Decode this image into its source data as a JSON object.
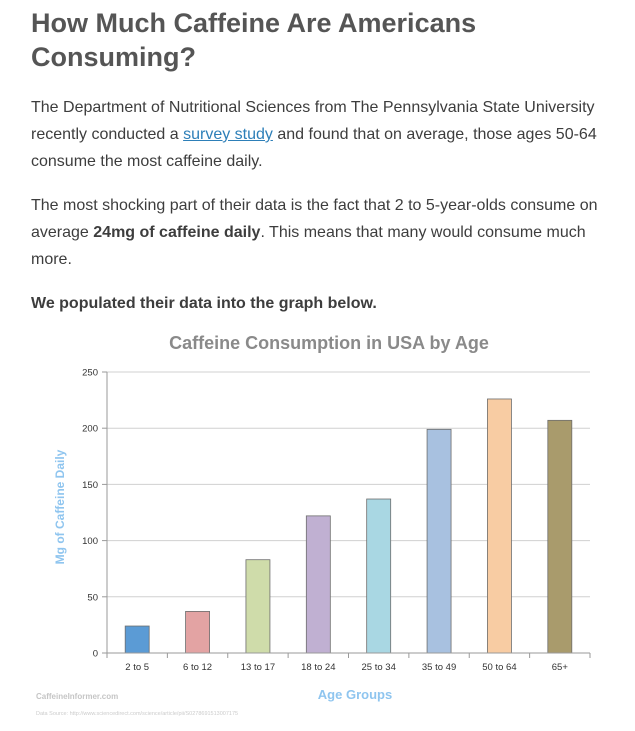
{
  "article": {
    "title": "How Much Caffeine Are Americans Consuming?",
    "paragraph1": {
      "before_link": "The Department of Nutritional Sciences from The Pennsylvania State University recently conducted a ",
      "link_text": "survey study",
      "after_link": " and found that on average, those ages 50-64 consume the most caffeine daily."
    },
    "paragraph2": {
      "before_bold": "The most shocking part of their data is the fact that 2 to 5-year-olds consume on average ",
      "bold_text": "24mg of caffeine daily",
      "after_bold": ". This means that many would consume much more."
    },
    "paragraph3": "We populated their data into the graph below.",
    "link_color": "#2d7fb8"
  },
  "chart_data": {
    "type": "bar",
    "title": "Caffeine Consumption in USA by Age",
    "xlabel": "Age Groups",
    "ylabel": "Mg of Caffeine Daily",
    "categories": [
      "2 to 5",
      "6 to 12",
      "13 to 17",
      "18 to 24",
      "25 to 34",
      "35 to 49",
      "50 to 64",
      "65+"
    ],
    "values": [
      24,
      37,
      83,
      122,
      137,
      199,
      226,
      207
    ],
    "colors": [
      "#5b9bd5",
      "#e3a3a3",
      "#cfdcaa",
      "#c0b0d2",
      "#a9d7e3",
      "#a8c1e0",
      "#f8cca3",
      "#a99b6c"
    ],
    "ylim": [
      0,
      250
    ],
    "yticks": [
      0,
      50,
      100,
      150,
      200,
      250
    ],
    "grid": true,
    "label_color": "#8fc5ef",
    "title_color": "#8a8a8a",
    "watermark": "CaffeineInformer.com",
    "source": "Data Source: http://www.sciencedirect.com/science/article/pii/S0278691513007175"
  }
}
